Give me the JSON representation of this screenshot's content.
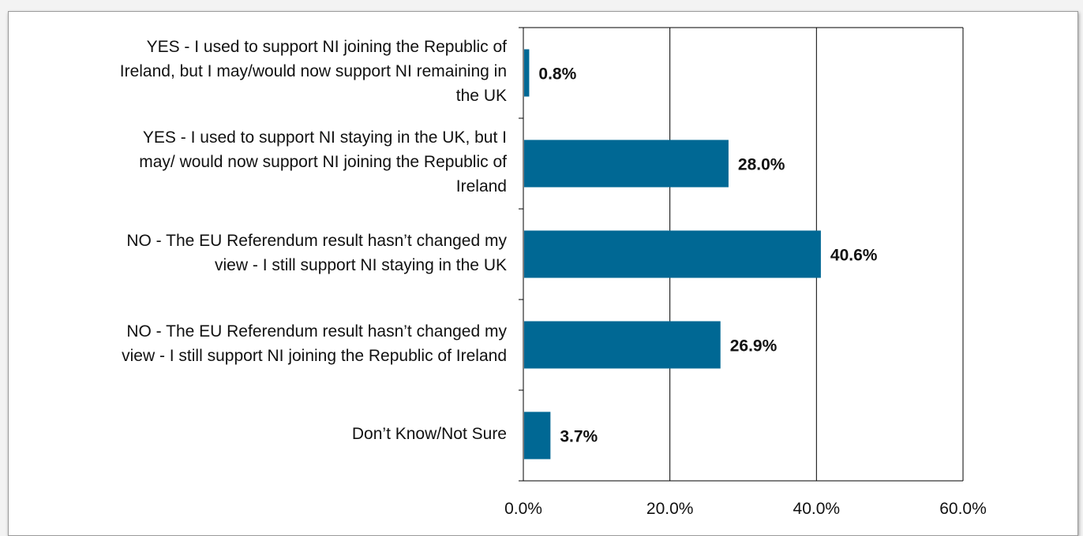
{
  "chart_data": {
    "type": "bar",
    "orientation": "horizontal",
    "categories": [
      "YES - I used to support NI joining the Republic of Ireland, but I may/would now support NI remaining in the UK",
      "YES - I used to support NI staying in the UK, but I may/ would now support NI joining the Republic of Ireland",
      "NO - The EU Referendum result hasn’t changed my view - I still support NI staying in the UK",
      "NO - The EU Referendum result hasn’t changed my view - I still support NI joining the Republic of Ireland",
      "Don’t Know/Not Sure"
    ],
    "category_lines": [
      [
        "YES - I used to support NI joining the Republic of",
        "Ireland, but I may/would now support NI remaining in",
        "the UK"
      ],
      [
        "YES - I used to support NI staying in the UK, but I",
        "may/ would now support NI joining the Republic of",
        "Ireland"
      ],
      [
        "NO - The EU Referendum result hasn’t changed my",
        "view - I still support NI staying in the UK"
      ],
      [
        "NO - The EU Referendum result hasn’t changed my",
        "view - I still support NI joining the Republic of Ireland"
      ],
      [
        "Don’t Know/Not Sure"
      ]
    ],
    "values": [
      0.8,
      28.0,
      40.6,
      26.9,
      3.7
    ],
    "data_labels": [
      "0.8%",
      "28.0%",
      "40.6%",
      "26.9%",
      "3.7%"
    ],
    "xlim": [
      0,
      60
    ],
    "xticks": [
      0,
      20,
      40,
      60
    ],
    "xtick_labels": [
      "0.0%",
      "20.0%",
      "40.0%",
      "60.0%"
    ],
    "title": "",
    "xlabel": "",
    "ylabel": "",
    "grid": "vertical",
    "legend": "none",
    "bar_color": "#006894"
  }
}
